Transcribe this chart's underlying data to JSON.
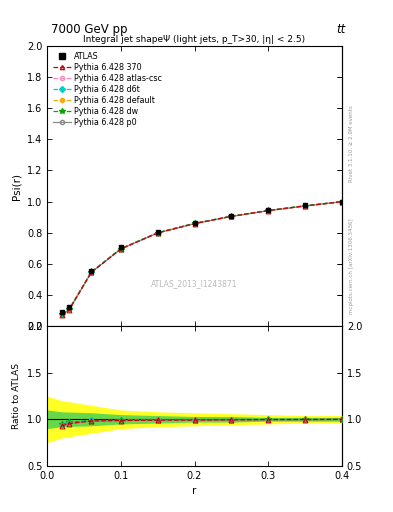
{
  "title_top": "7000 GeV pp",
  "title_right": "tt",
  "right_label": "mcplots.cern.ch [arXiv:1306.3436]",
  "right_label2": "Rivet 3.1.10, ≥ 2.9M events",
  "main_title": "Integral jet shapeΨ (light jets, p_T>30, |η| < 2.5)",
  "ylabel_main": "Psi(r)",
  "ylabel_ratio": "Ratio to ATLAS",
  "xlabel": "r",
  "watermark": "ATLAS_2013_I1243871",
  "x_data": [
    0.02,
    0.03,
    0.06,
    0.1,
    0.15,
    0.2,
    0.25,
    0.3,
    0.35,
    0.4
  ],
  "atlas_y": [
    0.29,
    0.32,
    0.555,
    0.705,
    0.805,
    0.865,
    0.91,
    0.945,
    0.975,
    1.0
  ],
  "atlas_yerr": [
    0.015,
    0.015,
    0.015,
    0.015,
    0.01,
    0.01,
    0.008,
    0.008,
    0.006,
    0.005
  ],
  "pythia_370_y": [
    0.27,
    0.305,
    0.545,
    0.695,
    0.798,
    0.858,
    0.905,
    0.942,
    0.972,
    0.999
  ],
  "pythia_atlas_csc_y": [
    0.271,
    0.306,
    0.546,
    0.696,
    0.799,
    0.859,
    0.905,
    0.942,
    0.972,
    0.999
  ],
  "pythia_d6t_y": [
    0.275,
    0.31,
    0.548,
    0.698,
    0.8,
    0.86,
    0.906,
    0.943,
    0.973,
    1.0
  ],
  "pythia_default_y": [
    0.272,
    0.307,
    0.546,
    0.696,
    0.799,
    0.859,
    0.905,
    0.942,
    0.972,
    0.999
  ],
  "pythia_dw_y": [
    0.274,
    0.309,
    0.547,
    0.697,
    0.8,
    0.86,
    0.906,
    0.943,
    0.973,
    1.0
  ],
  "pythia_p0_y": [
    0.271,
    0.306,
    0.545,
    0.695,
    0.798,
    0.858,
    0.904,
    0.941,
    0.971,
    0.999
  ],
  "color_370": "#cc0000",
  "color_atlas_csc": "#ff88bb",
  "color_d6t": "#00cccc",
  "color_default": "#ffaa00",
  "color_dw": "#00aa00",
  "color_p0": "#888888",
  "ylim_main": [
    0.2,
    2.0
  ],
  "ylim_ratio": [
    0.5,
    2.0
  ],
  "xlim": [
    0.0,
    0.4
  ]
}
